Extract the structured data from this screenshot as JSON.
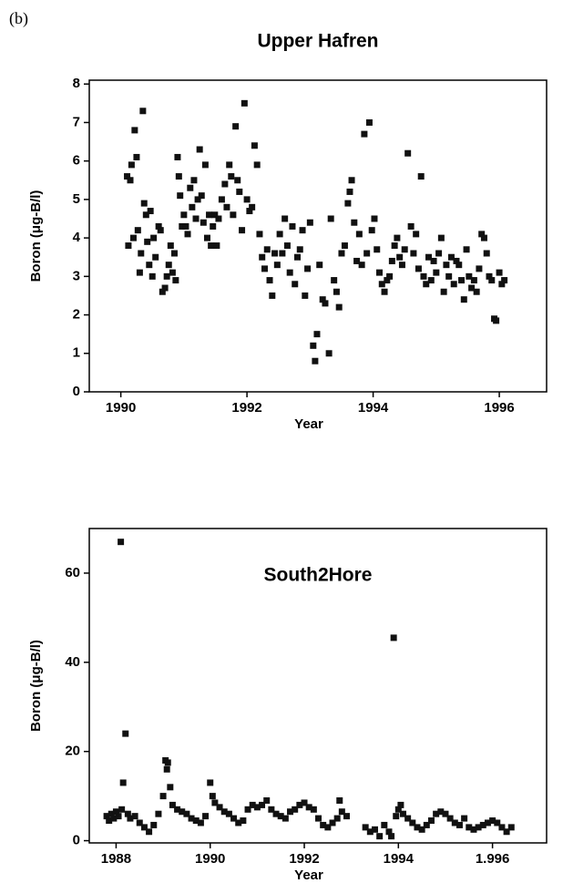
{
  "panel_label": "(b)",
  "chart_data": [
    {
      "type": "scatter",
      "title": "Upper Hafren",
      "xlabel": "Year",
      "ylabel": "Boron (μg-B/l)",
      "color": "#111111",
      "xlim": [
        1989.5,
        1996.75
      ],
      "ylim": [
        0,
        8.1
      ],
      "xticks": [
        1990,
        1992,
        1994,
        1996
      ],
      "yticks": [
        0,
        1,
        2,
        3,
        4,
        5,
        6,
        7,
        8
      ],
      "x": [
        1990.1,
        1990.12,
        1990.15,
        1990.17,
        1990.2,
        1990.22,
        1990.25,
        1990.27,
        1990.3,
        1990.32,
        1990.35,
        1990.37,
        1990.4,
        1990.42,
        1990.45,
        1990.47,
        1990.5,
        1990.52,
        1990.55,
        1990.6,
        1990.63,
        1990.66,
        1990.7,
        1990.73,
        1990.76,
        1990.79,
        1990.82,
        1990.85,
        1990.87,
        1990.9,
        1990.92,
        1990.94,
        1990.97,
        1991.0,
        1991.03,
        1991.06,
        1991.1,
        1991.13,
        1991.16,
        1991.19,
        1991.22,
        1991.25,
        1991.28,
        1991.31,
        1991.34,
        1991.37,
        1991.4,
        1991.43,
        1991.46,
        1991.49,
        1991.52,
        1991.55,
        1991.6,
        1991.65,
        1991.68,
        1991.72,
        1991.75,
        1991.78,
        1991.82,
        1991.85,
        1991.88,
        1991.92,
        1991.96,
        1992.0,
        1992.04,
        1992.08,
        1992.12,
        1992.16,
        1992.2,
        1992.24,
        1992.28,
        1992.32,
        1992.36,
        1992.4,
        1992.44,
        1992.48,
        1992.52,
        1992.56,
        1992.6,
        1992.64,
        1992.68,
        1992.72,
        1992.76,
        1992.8,
        1992.84,
        1992.88,
        1992.92,
        1992.96,
        1993.0,
        1993.05,
        1993.08,
        1993.11,
        1993.15,
        1993.2,
        1993.24,
        1993.3,
        1993.33,
        1993.38,
        1993.42,
        1993.46,
        1993.5,
        1993.55,
        1993.6,
        1993.63,
        1993.66,
        1993.7,
        1993.74,
        1993.78,
        1993.82,
        1993.86,
        1993.9,
        1993.94,
        1993.98,
        1994.02,
        1994.06,
        1994.1,
        1994.14,
        1994.18,
        1994.22,
        1994.26,
        1994.3,
        1994.34,
        1994.38,
        1994.42,
        1994.46,
        1994.5,
        1994.55,
        1994.6,
        1994.64,
        1994.68,
        1994.72,
        1994.76,
        1994.8,
        1994.84,
        1994.88,
        1994.92,
        1994.96,
        1995.0,
        1995.04,
        1995.08,
        1995.12,
        1995.16,
        1995.2,
        1995.24,
        1995.28,
        1995.32,
        1995.36,
        1995.4,
        1995.44,
        1995.48,
        1995.52,
        1995.56,
        1995.6,
        1995.64,
        1995.68,
        1995.72,
        1995.76,
        1995.8,
        1995.84,
        1995.88,
        1995.92,
        1995.95,
        1996.0,
        1996.04,
        1996.08
      ],
      "values": [
        5.6,
        3.8,
        5.5,
        5.9,
        4.0,
        6.8,
        6.1,
        4.2,
        3.1,
        3.6,
        7.3,
        4.9,
        4.6,
        3.9,
        3.3,
        4.7,
        3.0,
        4.0,
        3.5,
        4.3,
        4.2,
        2.6,
        2.7,
        3.0,
        3.3,
        3.8,
        3.1,
        3.6,
        2.9,
        6.1,
        5.6,
        5.1,
        4.3,
        4.6,
        4.3,
        4.1,
        5.3,
        4.8,
        5.5,
        4.5,
        5.0,
        6.3,
        5.1,
        4.4,
        5.9,
        4.0,
        4.6,
        3.8,
        4.3,
        4.6,
        3.8,
        4.5,
        5.0,
        5.4,
        4.8,
        5.9,
        5.6,
        4.6,
        6.9,
        5.5,
        5.2,
        4.2,
        7.5,
        5.0,
        4.7,
        4.8,
        6.4,
        5.9,
        4.1,
        3.5,
        3.2,
        3.7,
        2.9,
        2.5,
        3.6,
        3.3,
        4.1,
        3.6,
        4.5,
        3.8,
        3.1,
        4.3,
        2.8,
        3.5,
        3.7,
        4.2,
        2.5,
        3.2,
        4.4,
        1.2,
        0.8,
        1.5,
        3.3,
        2.4,
        2.3,
        1.0,
        4.5,
        2.9,
        2.6,
        2.2,
        3.6,
        3.8,
        4.9,
        5.2,
        5.5,
        4.4,
        3.4,
        4.1,
        3.3,
        6.7,
        3.6,
        7.0,
        4.2,
        4.5,
        3.7,
        3.1,
        2.8,
        2.6,
        2.9,
        3.0,
        3.4,
        3.8,
        4.0,
        3.5,
        3.3,
        3.7,
        6.2,
        4.3,
        3.6,
        4.1,
        3.2,
        5.6,
        3.0,
        2.8,
        3.5,
        2.9,
        3.4,
        3.1,
        3.6,
        4.0,
        2.6,
        3.3,
        3.0,
        3.5,
        2.8,
        3.4,
        3.3,
        2.9,
        2.4,
        3.7,
        3.0,
        2.7,
        2.9,
        2.6,
        3.2,
        4.1,
        4.0,
        3.6,
        3.0,
        2.9,
        1.9,
        1.85,
        3.1,
        2.8,
        2.9
      ]
    },
    {
      "type": "scatter",
      "title": "South2Hore",
      "xlabel": "Year",
      "ylabel": "Boron (μg-B/l)",
      "color": "#111111",
      "xlim": [
        1987.43,
        1997.15
      ],
      "ylim": [
        -0.5,
        70
      ],
      "xticks": [
        1988,
        1990,
        1992,
        1994,
        {
          "value": 1996,
          "label": "1.996"
        }
      ],
      "yticks": [
        0,
        20,
        40,
        60
      ],
      "x": [
        1987.8,
        1987.85,
        1987.9,
        1987.95,
        1988.0,
        1988.05,
        1988.1,
        1988.12,
        1988.15,
        1988.2,
        1988.25,
        1988.3,
        1988.4,
        1988.5,
        1988.6,
        1988.7,
        1988.8,
        1988.9,
        1989.0,
        1989.05,
        1989.08,
        1989.1,
        1989.15,
        1989.2,
        1989.3,
        1989.4,
        1989.5,
        1989.6,
        1989.7,
        1989.8,
        1989.9,
        1990.0,
        1990.05,
        1990.1,
        1990.2,
        1990.3,
        1990.4,
        1990.5,
        1990.6,
        1990.7,
        1990.8,
        1990.9,
        1991.0,
        1991.1,
        1991.2,
        1991.3,
        1991.4,
        1991.5,
        1991.6,
        1991.7,
        1991.8,
        1991.9,
        1992.0,
        1992.1,
        1992.2,
        1992.3,
        1992.4,
        1992.5,
        1992.6,
        1992.7,
        1992.75,
        1992.8,
        1992.9,
        1993.3,
        1993.4,
        1993.5,
        1993.6,
        1993.7,
        1993.8,
        1993.85,
        1993.9,
        1993.95,
        1994.0,
        1994.05,
        1994.1,
        1994.2,
        1994.3,
        1994.4,
        1994.5,
        1994.6,
        1994.7,
        1994.8,
        1994.9,
        1995.0,
        1995.1,
        1995.2,
        1995.3,
        1995.4,
        1995.5,
        1995.6,
        1995.7,
        1995.8,
        1995.9,
        1996.0,
        1996.1,
        1996.2,
        1996.3,
        1996.4
      ],
      "values": [
        5.5,
        4.5,
        6.0,
        5.0,
        6.5,
        5.5,
        67,
        7.0,
        13,
        24,
        6.0,
        5.0,
        5.5,
        4.0,
        3.0,
        2.0,
        3.5,
        6.0,
        10,
        18,
        16,
        17.5,
        12,
        8.0,
        7.0,
        6.5,
        6.0,
        5.0,
        4.5,
        4.0,
        5.5,
        13,
        10,
        8.5,
        7.5,
        6.5,
        6.0,
        5.0,
        4.0,
        4.5,
        7.0,
        8.0,
        7.5,
        8.0,
        9.0,
        7.0,
        6.0,
        5.5,
        5.0,
        6.5,
        7.0,
        8.0,
        8.5,
        7.5,
        7.0,
        5.0,
        3.5,
        3.0,
        4.0,
        5.0,
        9.0,
        6.5,
        5.5,
        3.0,
        2.0,
        2.5,
        1.0,
        3.5,
        2.0,
        1.0,
        45.5,
        5.5,
        7.0,
        8.0,
        6.0,
        5.0,
        4.0,
        3.0,
        2.5,
        3.5,
        4.5,
        6.0,
        6.5,
        6.0,
        5.0,
        4.0,
        3.5,
        5.0,
        3.0,
        2.5,
        3.0,
        3.5,
        4.0,
        4.5,
        4.0,
        3.0,
        2.0,
        3.0
      ]
    }
  ]
}
